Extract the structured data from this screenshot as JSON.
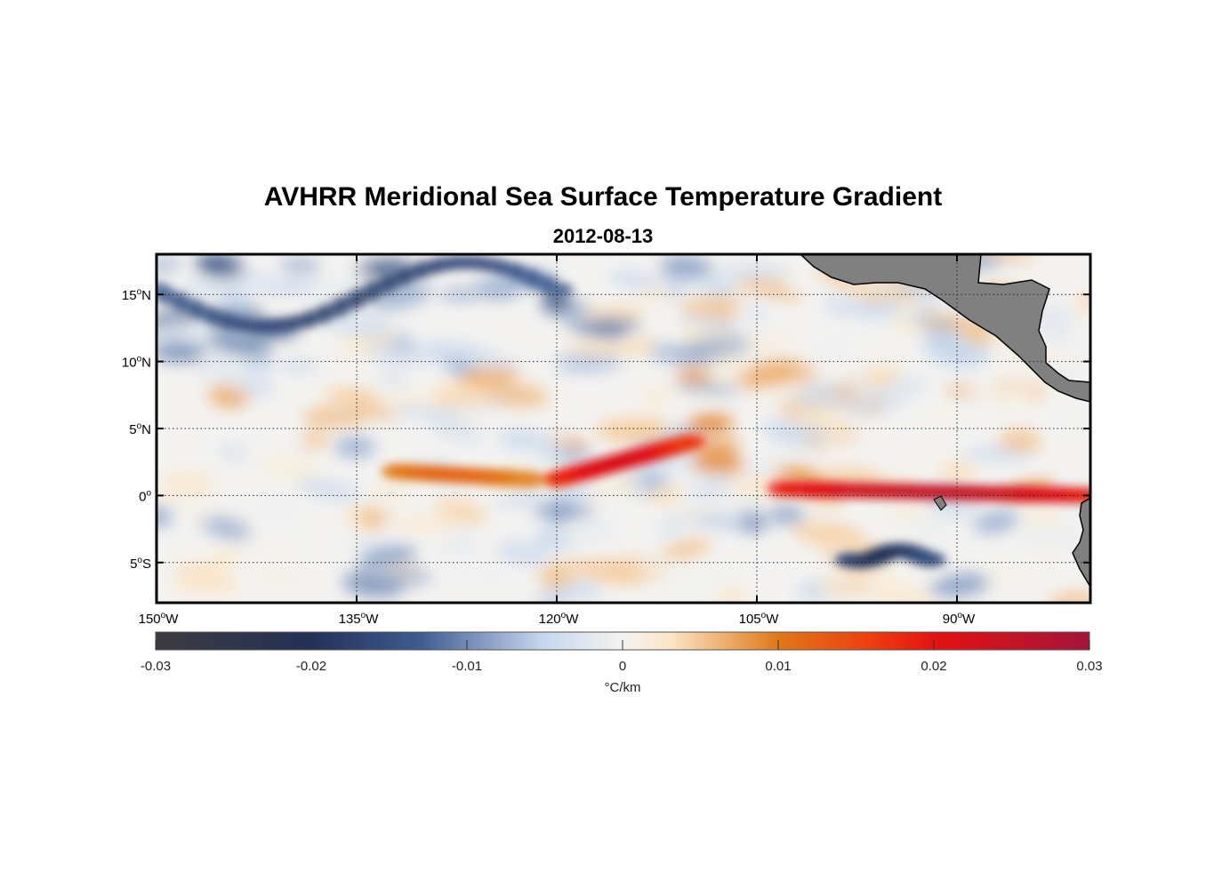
{
  "title": "AVHRR Meridional Sea Surface Temperature Gradient",
  "date": "2012-08-13",
  "chart_data": {
    "type": "heatmap",
    "title": "AVHRR Meridional Sea Surface Temperature Gradient",
    "subtitle": "2012-08-13",
    "variable": "meridional SST gradient",
    "units": "°C/km",
    "lon_range": [
      -150,
      -80
    ],
    "lat_range": [
      -8,
      18
    ],
    "x_ticks": [
      {
        "value": -150,
        "num": "150",
        "hemi": "W"
      },
      {
        "value": -135,
        "num": "135",
        "hemi": "W"
      },
      {
        "value": -120,
        "num": "120",
        "hemi": "W"
      },
      {
        "value": -105,
        "num": "105",
        "hemi": "W"
      },
      {
        "value": -90,
        "num": "90",
        "hemi": "W"
      }
    ],
    "y_ticks": [
      {
        "value": 15,
        "num": "15",
        "hemi": "N"
      },
      {
        "value": 10,
        "num": "10",
        "hemi": "N"
      },
      {
        "value": 5,
        "num": "5",
        "hemi": "N"
      },
      {
        "value": 0,
        "num": "0",
        "hemi": ""
      },
      {
        "value": -5,
        "num": "5",
        "hemi": "S"
      }
    ],
    "grid": true,
    "colorbar": {
      "orientation": "horizontal",
      "range": [
        -0.03,
        0.03
      ],
      "ticks": [
        -0.03,
        -0.02,
        -0.01,
        0,
        0.01,
        0.02,
        0.03
      ],
      "tick_labels": [
        "-0.03",
        "-0.02",
        "-0.01",
        "0",
        "0.01",
        "0.02",
        "0.03"
      ],
      "label": "°C/km",
      "stops": [
        {
          "v": -0.03,
          "color": "#3b3b3f"
        },
        {
          "v": -0.02,
          "color": "#233157"
        },
        {
          "v": -0.013,
          "color": "#3f5c90"
        },
        {
          "v": -0.005,
          "color": "#c8d8ee"
        },
        {
          "v": 0,
          "color": "#f3f3f0"
        },
        {
          "v": 0.003,
          "color": "#fbe6c8"
        },
        {
          "v": 0.01,
          "color": "#e07818"
        },
        {
          "v": 0.016,
          "color": "#ec3e0f"
        },
        {
          "v": 0.02,
          "color": "#e51212"
        },
        {
          "v": 0.03,
          "color": "#a3143a"
        }
      ]
    },
    "features": [
      {
        "name": "equatorial-front-central",
        "lon": [
          -120,
          -110
        ],
        "lat": [
          0,
          4
        ],
        "value": 0.022
      },
      {
        "name": "equatorial-front-east",
        "lon": [
          -103,
          -80
        ],
        "lat": [
          -1,
          1.5
        ],
        "value": 0.025
      },
      {
        "name": "equatorial-front-west",
        "lon": [
          -132,
          -122
        ],
        "lat": [
          0,
          3
        ],
        "value": 0.012
      },
      {
        "name": "negative-band-north",
        "lon": [
          -150,
          -120
        ],
        "lat": [
          12,
          18
        ],
        "value": -0.017
      },
      {
        "name": "negative-band-south",
        "lon": [
          -98,
          -92
        ],
        "lat": [
          -5,
          -4
        ],
        "value": -0.02
      }
    ],
    "land": "Central and South America shown in gray"
  }
}
